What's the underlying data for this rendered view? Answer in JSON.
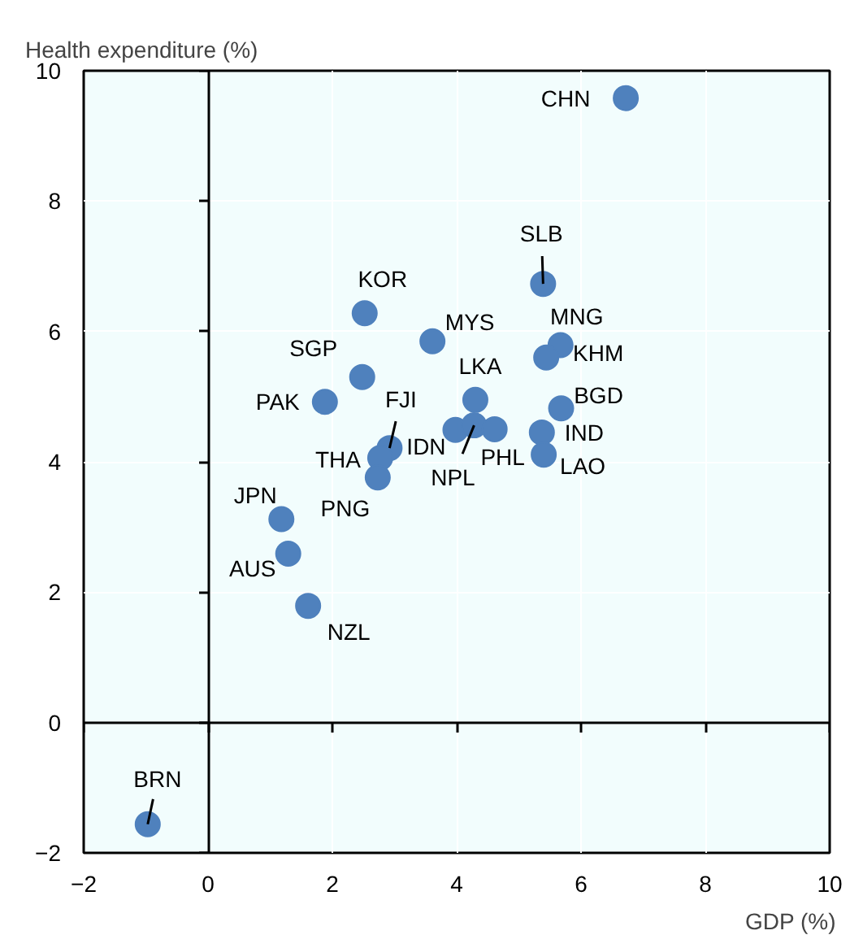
{
  "chart_data": {
    "type": "scatter",
    "xlabel": "GDP (%)",
    "ylabel": "Health expenditure (%)",
    "xlim": [
      -2,
      10
    ],
    "ylim": [
      -2,
      10
    ],
    "xticks": [
      -2,
      0,
      2,
      4,
      6,
      8,
      10
    ],
    "yticks": [
      -2,
      0,
      2,
      4,
      6,
      8,
      10
    ],
    "grid": true,
    "marker": "circle",
    "series": [
      {
        "color": "#4f81bd",
        "x": [
          6.72,
          5.39,
          2.52,
          3.61,
          5.67,
          5.44,
          2.48,
          1.88,
          4.3,
          5.68,
          3.98,
          4.28,
          4.61,
          5.37,
          5.4,
          2.92,
          2.77,
          2.73,
          1.18,
          1.29,
          1.61,
          -0.97
        ],
        "values": [
          9.58,
          6.73,
          6.28,
          5.85,
          5.79,
          5.6,
          5.3,
          4.92,
          4.95,
          4.82,
          4.49,
          4.56,
          4.5,
          4.45,
          4.11,
          4.21,
          4.06,
          3.76,
          3.12,
          2.59,
          1.79,
          -1.56
        ],
        "value_labels": [
          "CHN",
          "SLB",
          "KOR",
          "MYS",
          "MNG",
          "KHM",
          "SGP",
          "PAK",
          "LKA",
          "BGD",
          "IDN",
          "NPL",
          "PHL",
          "IND",
          "LAO",
          "FJI",
          "THA",
          "PNG",
          "JPN",
          "AUS",
          "NZL",
          "BRN"
        ]
      }
    ]
  }
}
